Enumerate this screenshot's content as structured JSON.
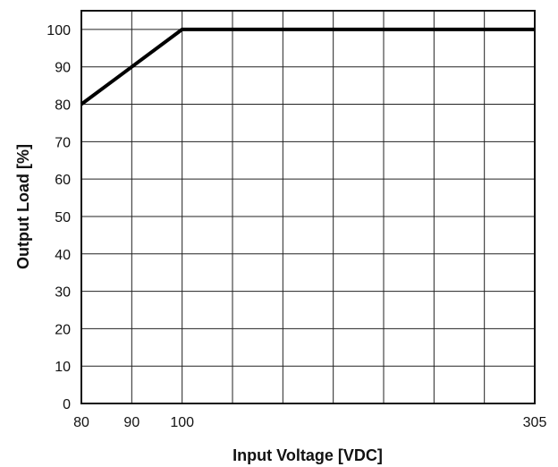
{
  "chart_data": {
    "type": "line",
    "xlabel": "Input Voltage [VDC]",
    "ylabel": "Output Load [%]",
    "x_ticks": [
      "80",
      "90",
      "100",
      "305"
    ],
    "y_ticks": [
      "0",
      "10",
      "20",
      "30",
      "40",
      "50",
      "60",
      "70",
      "80",
      "90",
      "100"
    ],
    "xlim": [
      80,
      305
    ],
    "ylim": [
      0,
      105
    ],
    "grid": true,
    "series": [
      {
        "points": [
          {
            "x": 80,
            "y": 80
          },
          {
            "x": 100,
            "y": 100
          },
          {
            "x": 305,
            "y": 100
          }
        ]
      }
    ]
  }
}
